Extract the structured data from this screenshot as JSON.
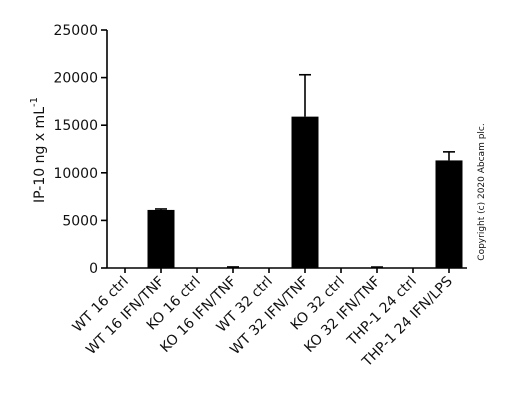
{
  "chart_data": {
    "type": "bar",
    "ylabel": "IP-10 ng x mL",
    "ylabel_superscript": "-1",
    "note": "Copyright (c) 2020 Abcam plc.",
    "categories": [
      "WT 16 ctrl",
      "WT 16 IFN/TNF",
      "KO 16 ctrl",
      "KO 16 IFN/TNF",
      "WT 32 ctrl",
      "WT 32 IFN/TNF",
      "KO 32 ctrl",
      "KO 32 IFN/TNF",
      "THP-1 24 ctrl",
      "THP-1 24 IFN/LPS"
    ],
    "values": [
      0,
      6100,
      0,
      50,
      0,
      15900,
      0,
      50,
      0,
      11300
    ],
    "errors": [
      null,
      100,
      null,
      60,
      null,
      4400,
      null,
      50,
      null,
      900
    ],
    "color": "#000000",
    "ylim": [
      0,
      25000
    ],
    "yticks": [
      0,
      5000,
      10000,
      15000,
      20000,
      25000
    ]
  }
}
